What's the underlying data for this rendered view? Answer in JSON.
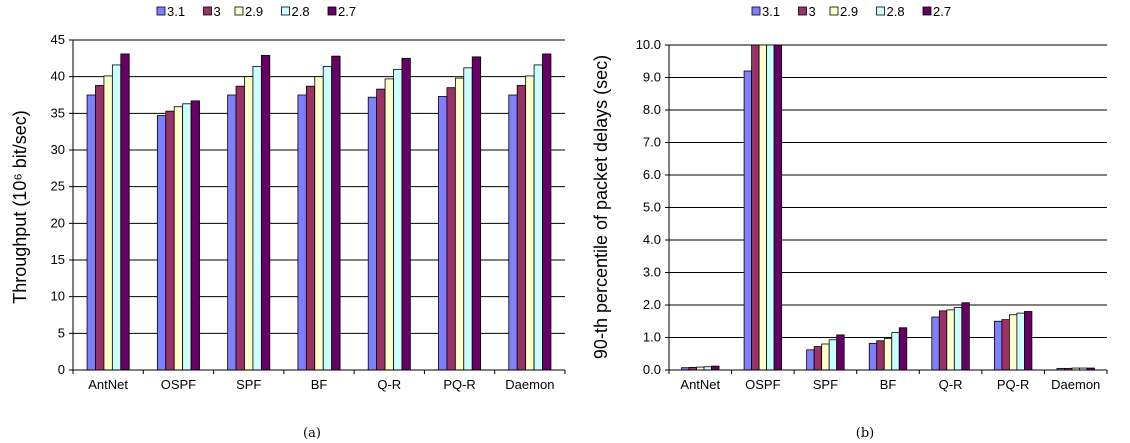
{
  "chart_data": [
    {
      "type": "bar",
      "caption": "(a)",
      "ylabel": "Throughput (10⁶ bit/sec)",
      "ylim": [
        0,
        45
      ],
      "yticks": [
        0,
        5,
        10,
        15,
        20,
        25,
        30,
        35,
        40,
        45
      ],
      "grid": "horizontal",
      "legend": "top",
      "categories": [
        "AntNet",
        "OSPF",
        "SPF",
        "BF",
        "Q-R",
        "PQ-R",
        "Daemon"
      ],
      "series": [
        {
          "name": "3.1",
          "color": "#8080ff",
          "values": [
            37.5,
            34.7,
            37.5,
            37.5,
            37.2,
            37.3,
            37.5
          ]
        },
        {
          "name": "3",
          "color": "#993366",
          "values": [
            38.8,
            35.3,
            38.7,
            38.7,
            38.3,
            38.5,
            38.8
          ]
        },
        {
          "name": "2.9",
          "color": "#ffffcc",
          "values": [
            40.1,
            35.9,
            40.0,
            40.0,
            39.7,
            39.8,
            40.1
          ]
        },
        {
          "name": "2.8",
          "color": "#ccffff",
          "values": [
            41.6,
            36.3,
            41.4,
            41.4,
            41.0,
            41.2,
            41.6
          ]
        },
        {
          "name": "2.7",
          "color": "#660066",
          "values": [
            43.1,
            36.7,
            42.9,
            42.8,
            42.5,
            42.7,
            43.1
          ]
        }
      ]
    },
    {
      "type": "bar",
      "caption": "(b)",
      "ylabel": "90-th percentile of packet delays (sec)",
      "ylim": [
        0,
        10
      ],
      "yticks": [
        "0.0",
        "1.0",
        "2.0",
        "3.0",
        "4.0",
        "5.0",
        "6.0",
        "7.0",
        "8.0",
        "9.0",
        "10.0"
      ],
      "grid": "horizontal",
      "legend": "top",
      "categories": [
        "AntNet",
        "OSPF",
        "SPF",
        "BF",
        "Q-R",
        "PQ-R",
        "Daemon"
      ],
      "series": [
        {
          "name": "3.1",
          "color": "#8080ff",
          "values": [
            0.07,
            9.2,
            0.62,
            0.82,
            1.63,
            1.5,
            0.05
          ]
        },
        {
          "name": "3",
          "color": "#993366",
          "values": [
            0.08,
            10.0,
            0.72,
            0.9,
            1.82,
            1.55,
            0.05
          ]
        },
        {
          "name": "2.9",
          "color": "#ffffcc",
          "values": [
            0.09,
            10.0,
            0.8,
            0.97,
            1.85,
            1.7,
            0.06
          ]
        },
        {
          "name": "2.8",
          "color": "#ccffff",
          "values": [
            0.1,
            10.0,
            0.93,
            1.15,
            1.92,
            1.75,
            0.06
          ]
        },
        {
          "name": "2.7",
          "color": "#660066",
          "values": [
            0.12,
            10.0,
            1.08,
            1.3,
            2.07,
            1.8,
            0.06
          ]
        }
      ]
    }
  ]
}
